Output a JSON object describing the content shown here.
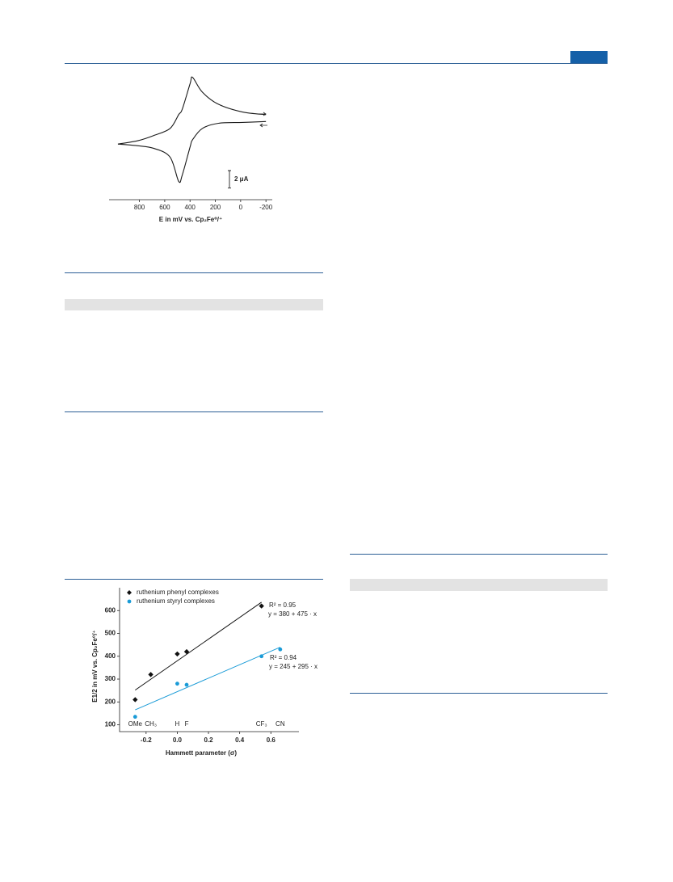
{
  "chart_data": [
    {
      "type": "line",
      "x_label": "E in mV vs. Cp₂Fe⁰/⁺",
      "x": [
        970,
        810,
        685,
        558,
        490,
        462,
        399,
        380,
        303,
        176,
        -15,
        -200
      ],
      "series": [
        {
          "color": "#1a1a1a",
          "values": [
            -2.7,
            -2.3,
            -1.7,
            -0.9,
            0.7,
            1.3,
            4.3,
            5.0,
            3.3,
            1.9,
            1.0,
            0.7
          ]
        },
        {
          "color": "#1a1a1a",
          "values": [
            -2.7,
            -2.9,
            -3.2,
            -4.2,
            -7.0,
            -6.3,
            -3.0,
            -2.2,
            -0.9,
            -0.3,
            -0.2,
            -0.1
          ]
        }
      ],
      "xlim": [
        1040,
        -250
      ],
      "xticks": [
        800,
        600,
        400,
        200,
        0,
        -200
      ],
      "ylim": [
        -8,
        6
      ],
      "scale_bar": {
        "value": 2,
        "label": "2 μA"
      }
    },
    {
      "type": "scatter",
      "x_label": "Hammett parameter (σ)",
      "y_label": "E1/2 in mV vs. Cp₂Fe⁰/⁺",
      "series": [
        {
          "name": "ruthenium phenyl complexes",
          "color": "#111111",
          "marker": "diamond",
          "x": [
            -0.27,
            -0.17,
            0,
            0.06,
            0.54
          ],
          "values": [
            210,
            320,
            410,
            420,
            620
          ],
          "fit": {
            "intercept": 380,
            "slope": 475
          },
          "r2_label": "R² = 0.95",
          "fit_label": "y = 380 + 475 · x"
        },
        {
          "name": "ruthenium styryl complexes",
          "color": "#1a9bd7",
          "marker": "circle",
          "x": [
            -0.27,
            0,
            0.06,
            0.54,
            0.66
          ],
          "values": [
            135,
            280,
            275,
            400,
            430
          ],
          "fit": {
            "intercept": 245,
            "slope": 295
          },
          "r2_label": "R² = 0.94",
          "fit_label": "y = 245 + 295 · x"
        }
      ],
      "substituents": [
        {
          "label": "OMe",
          "x": -0.27
        },
        {
          "label": "CH₃",
          "x": -0.17
        },
        {
          "label": "H",
          "x": 0
        },
        {
          "label": "F",
          "x": 0.06
        },
        {
          "label": "CF₃",
          "x": 0.54
        },
        {
          "label": "CN",
          "x": 0.66
        }
      ],
      "xlim": [
        -0.37,
        0.78
      ],
      "xticks": [
        -0.2,
        {
          "value": 0,
          "label": "0.0"
        },
        0.2,
        0.4,
        0.6
      ],
      "ylim": [
        70,
        700
      ],
      "yticks": [
        100,
        200,
        300,
        400,
        500,
        600
      ]
    }
  ]
}
